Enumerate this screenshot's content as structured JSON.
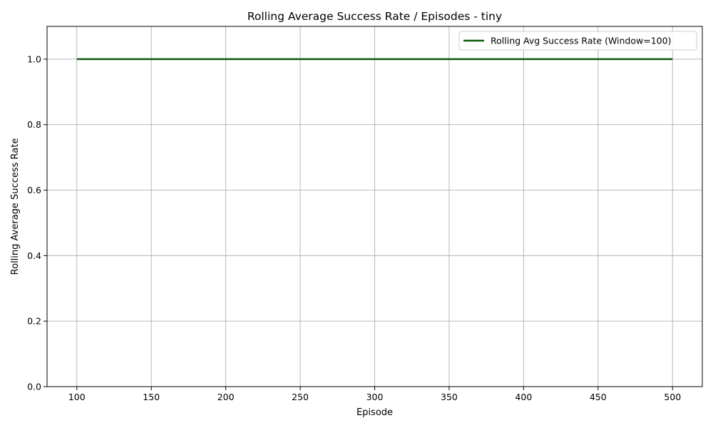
{
  "chart_data": {
    "type": "line",
    "title": "Rolling Average Success Rate / Episodes - tiny",
    "xlabel": "Episode",
    "ylabel": "Rolling Average Success Rate",
    "xlim": [
      80,
      520
    ],
    "ylim": [
      0.0,
      1.1
    ],
    "xticks": [
      100,
      150,
      200,
      250,
      300,
      350,
      400,
      450,
      500
    ],
    "xtick_labels": [
      "100",
      "150",
      "200",
      "250",
      "300",
      "350",
      "400",
      "450",
      "500"
    ],
    "yticks": [
      0.0,
      0.2,
      0.4,
      0.6,
      0.8,
      1.0
    ],
    "ytick_labels": [
      "0.0",
      "0.2",
      "0.4",
      "0.6",
      "0.8",
      "1.0"
    ],
    "grid": true,
    "legend_position": "top-right",
    "series": [
      {
        "name": "Rolling Avg Success Rate (Window=100)",
        "color": "#0b5a0b",
        "x": [
          100,
          150,
          200,
          250,
          300,
          350,
          400,
          450,
          500
        ],
        "y": [
          1.0,
          1.0,
          1.0,
          1.0,
          1.0,
          1.0,
          1.0,
          1.0,
          1.0
        ]
      }
    ]
  }
}
